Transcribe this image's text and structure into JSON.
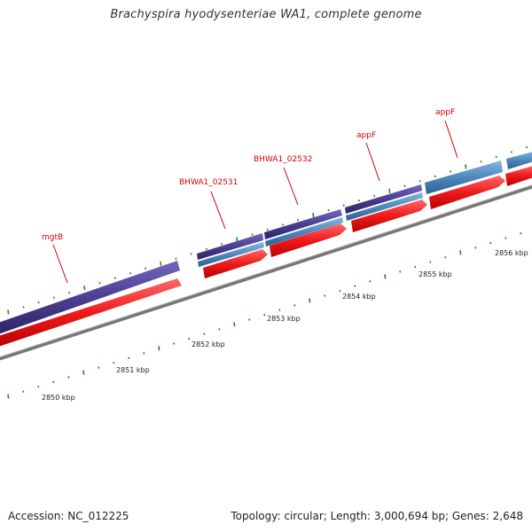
{
  "header": {
    "title": "Brachyspira hyodysenteriae WA1, complete genome"
  },
  "footer": {
    "accession": "Accession: NC_012225",
    "summary": "Topology: circular; Length: 3,000,694 bp; Genes: 2,648"
  },
  "colors": {
    "gene_purple": "#4a3f91",
    "gene_blue": "#4f88bd",
    "cds_red": "#ef1a1a",
    "backbone": "#777777",
    "tick_green": "#1f8a1f",
    "label_red": "#d40000"
  },
  "map": {
    "gene_labels": [
      "mgtB",
      "BHWA1_02531",
      "BHWA1_02532",
      "appF",
      "appF"
    ],
    "kbp_labels": [
      "2850 kbp",
      "2851 kbp",
      "2852 kbp",
      "2853 kbp",
      "2854 kbp",
      "2855 kbp",
      "2856 kbp"
    ]
  }
}
